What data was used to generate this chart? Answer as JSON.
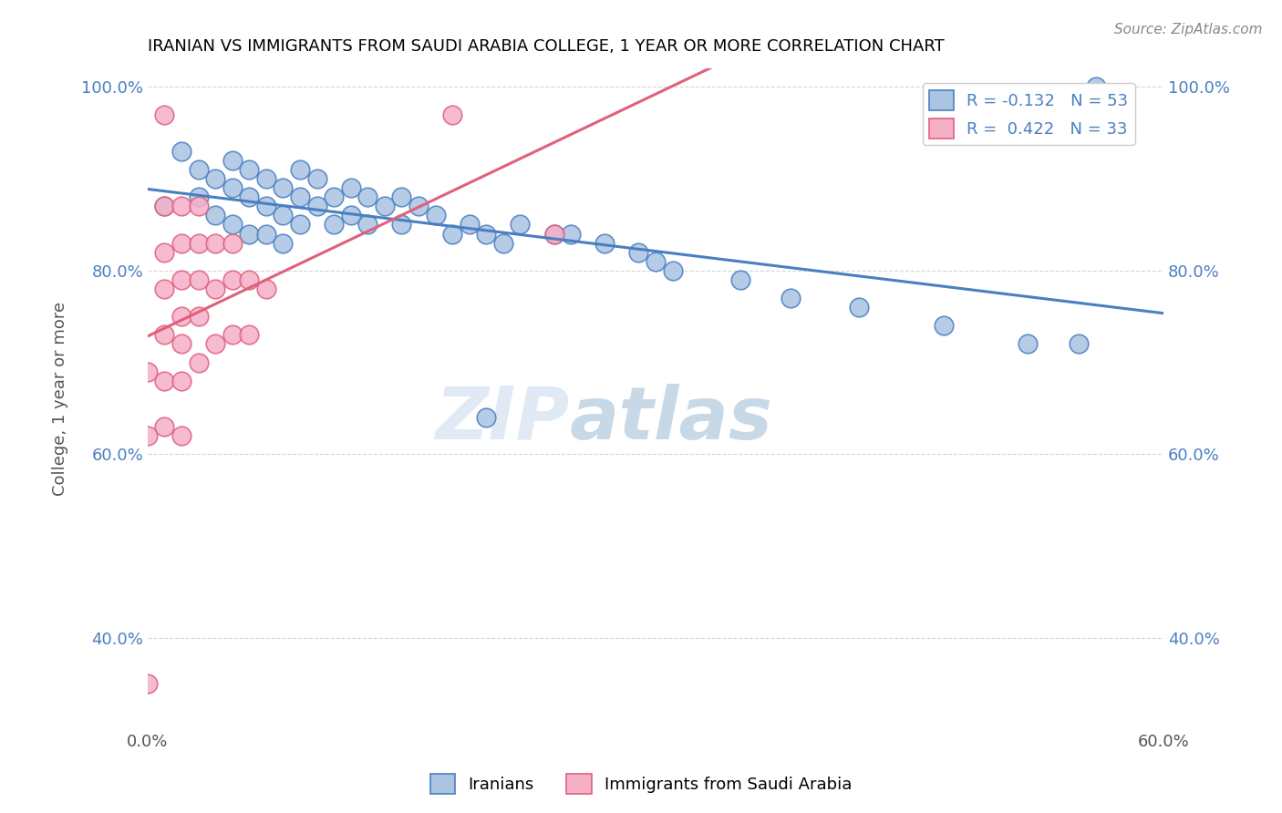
{
  "title": "IRANIAN VS IMMIGRANTS FROM SAUDI ARABIA COLLEGE, 1 YEAR OR MORE CORRELATION CHART",
  "source": "Source: ZipAtlas.com",
  "xlabel": "",
  "ylabel": "College, 1 year or more",
  "xmin": 0.0,
  "xmax": 0.6,
  "ymin": 0.3,
  "ymax": 1.02,
  "ytick_labels": [
    "40.0%",
    "60.0%",
    "80.0%",
    "100.0%"
  ],
  "ytick_values": [
    0.4,
    0.6,
    0.8,
    1.0
  ],
  "xtick_values": [
    0.0,
    0.1,
    0.2,
    0.3,
    0.4,
    0.5,
    0.6
  ],
  "xtick_labels": [
    "0.0%",
    "",
    "",
    "",
    "",
    "",
    "60.0%"
  ],
  "legend_label1": "Iranians",
  "legend_label2": "Immigrants from Saudi Arabia",
  "r1": -0.132,
  "n1": 53,
  "r2": 0.422,
  "n2": 33,
  "color_blue": "#aac4e2",
  "color_pink": "#f5b0c8",
  "line_blue": "#4a7fc1",
  "line_pink": "#e0607a",
  "watermark_zip": "ZIP",
  "watermark_atlas": "atlas",
  "blue_scatter_x": [
    0.01,
    0.02,
    0.03,
    0.03,
    0.04,
    0.04,
    0.05,
    0.05,
    0.05,
    0.06,
    0.06,
    0.06,
    0.07,
    0.07,
    0.07,
    0.08,
    0.08,
    0.08,
    0.09,
    0.09,
    0.09,
    0.1,
    0.1,
    0.11,
    0.11,
    0.12,
    0.12,
    0.13,
    0.13,
    0.14,
    0.15,
    0.15,
    0.16,
    0.17,
    0.18,
    0.19,
    0.2,
    0.21,
    0.22,
    0.24,
    0.25,
    0.27,
    0.29,
    0.3,
    0.31,
    0.35,
    0.38,
    0.42,
    0.47,
    0.52,
    0.2,
    0.55,
    0.56
  ],
  "blue_scatter_y": [
    0.87,
    0.93,
    0.91,
    0.88,
    0.9,
    0.86,
    0.92,
    0.89,
    0.85,
    0.91,
    0.88,
    0.84,
    0.9,
    0.87,
    0.84,
    0.89,
    0.86,
    0.83,
    0.91,
    0.88,
    0.85,
    0.9,
    0.87,
    0.88,
    0.85,
    0.89,
    0.86,
    0.88,
    0.85,
    0.87,
    0.88,
    0.85,
    0.87,
    0.86,
    0.84,
    0.85,
    0.84,
    0.83,
    0.85,
    0.84,
    0.84,
    0.83,
    0.82,
    0.81,
    0.8,
    0.79,
    0.77,
    0.76,
    0.74,
    0.72,
    0.64,
    0.72,
    1.0
  ],
  "pink_scatter_x": [
    0.0,
    0.0,
    0.0,
    0.01,
    0.01,
    0.01,
    0.01,
    0.01,
    0.01,
    0.01,
    0.02,
    0.02,
    0.02,
    0.02,
    0.02,
    0.02,
    0.02,
    0.03,
    0.03,
    0.03,
    0.03,
    0.03,
    0.04,
    0.04,
    0.04,
    0.05,
    0.05,
    0.05,
    0.06,
    0.06,
    0.07,
    0.18,
    0.24
  ],
  "pink_scatter_y": [
    0.69,
    0.62,
    0.35,
    0.97,
    0.87,
    0.82,
    0.78,
    0.73,
    0.68,
    0.63,
    0.87,
    0.83,
    0.79,
    0.75,
    0.72,
    0.68,
    0.62,
    0.87,
    0.83,
    0.79,
    0.75,
    0.7,
    0.83,
    0.78,
    0.72,
    0.83,
    0.79,
    0.73,
    0.79,
    0.73,
    0.78,
    0.97,
    0.84
  ]
}
